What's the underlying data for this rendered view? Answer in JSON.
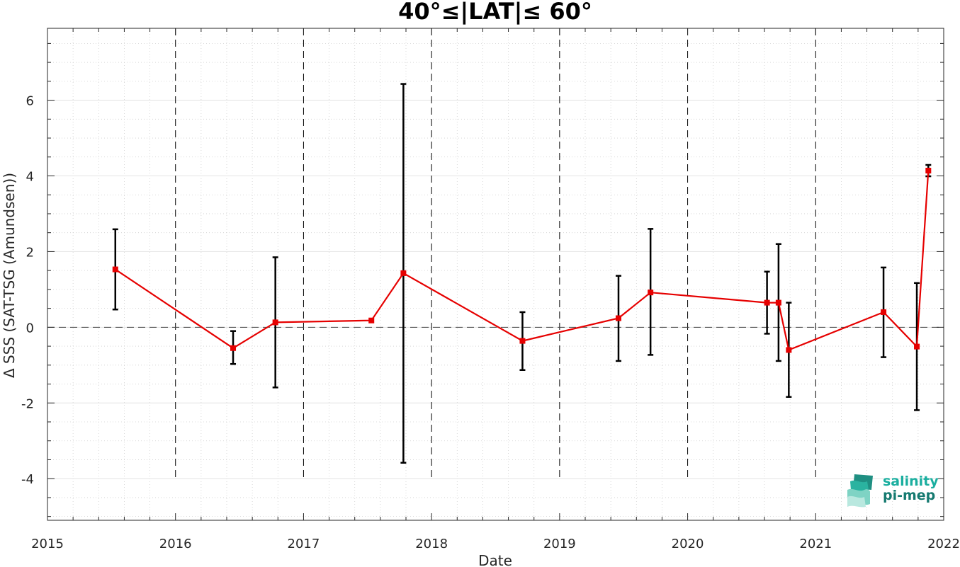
{
  "chart_data": {
    "type": "line",
    "title": "40°≤|LAT|≤ 60°",
    "xlabel": "Date",
    "ylabel": "Δ SSS (SAT-TSG (Amundsen))",
    "xlim": [
      2015,
      2022
    ],
    "ylim": [
      -5.1,
      7.9
    ],
    "x_ticks": [
      "2015",
      "2016",
      "2017",
      "2018",
      "2019",
      "2020",
      "2021",
      "2022"
    ],
    "y_ticks": [
      "-4",
      "-2",
      "0",
      "2",
      "4",
      "6"
    ],
    "grid": true,
    "minor_grid": true,
    "year_boundaries_dashed": true,
    "zero_line_dashed": true,
    "series_color": "#e60000",
    "errorbar_color": "#000000",
    "points": [
      {
        "x": 2015.53,
        "y": 1.53,
        "ylow": 0.47,
        "yhigh": 2.59
      },
      {
        "x": 2016.45,
        "y": -0.55,
        "ylow": -0.97,
        "yhigh": -0.1
      },
      {
        "x": 2016.78,
        "y": 0.13,
        "ylow": -1.59,
        "yhigh": 1.85
      },
      {
        "x": 2017.53,
        "y": 0.18,
        "ylow": null,
        "yhigh": null
      },
      {
        "x": 2017.78,
        "y": 1.43,
        "ylow": -3.58,
        "yhigh": 6.43
      },
      {
        "x": 2018.71,
        "y": -0.36,
        "ylow": -1.13,
        "yhigh": 0.4
      },
      {
        "x": 2019.46,
        "y": 0.24,
        "ylow": -0.89,
        "yhigh": 1.36
      },
      {
        "x": 2019.71,
        "y": 0.92,
        "ylow": -0.73,
        "yhigh": 2.6
      },
      {
        "x": 2020.62,
        "y": 0.65,
        "ylow": -0.17,
        "yhigh": 1.47
      },
      {
        "x": 2020.71,
        "y": 0.65,
        "ylow": -0.89,
        "yhigh": 2.2
      },
      {
        "x": 2020.79,
        "y": -0.6,
        "ylow": -1.84,
        "yhigh": 0.65
      },
      {
        "x": 2021.53,
        "y": 0.4,
        "ylow": -0.79,
        "yhigh": 1.58
      },
      {
        "x": 2021.79,
        "y": -0.51,
        "ylow": -2.19,
        "yhigh": 1.17
      },
      {
        "x": 2021.88,
        "y": 4.14,
        "ylow": 3.99,
        "yhigh": 4.29
      }
    ]
  },
  "logo": {
    "line1": "salinity",
    "line2": "pi-mep",
    "color1": "#1aae9f",
    "color2": "#157a70"
  }
}
